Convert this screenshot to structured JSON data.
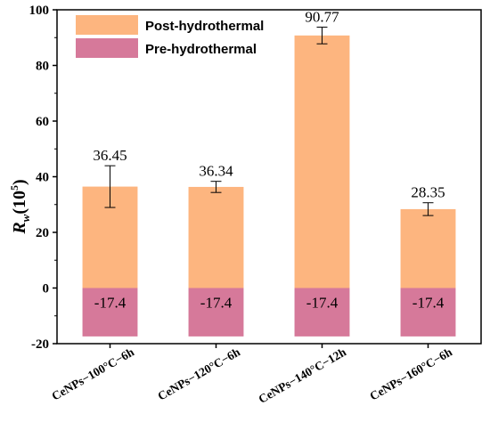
{
  "chart_data": {
    "type": "bar",
    "stacked": true,
    "categories": [
      "CeNPs−100°C−6h",
      "CeNPs−120°C−6h",
      "CeNPs−140°C−12h",
      "CeNPs−160°C−6h"
    ],
    "series": [
      {
        "name": "Post-hydrothermal",
        "values": [
          36.45,
          36.34,
          90.77,
          28.35
        ],
        "errors": [
          7.5,
          2.0,
          3.0,
          2.3
        ],
        "labels": [
          "36.45",
          "36.34",
          "90.77",
          "28.35"
        ],
        "color": "#FDB57F"
      },
      {
        "name": "Pre-hydrothermal",
        "values": [
          -17.4,
          -17.4,
          -17.4,
          -17.4
        ],
        "labels": [
          "-17.4",
          "-17.4",
          "-17.4",
          "-17.4"
        ],
        "color": "#D6799A"
      }
    ],
    "ylabel": {
      "main": "R",
      "sub": "w",
      "paren_open": "(10",
      "sup": "5",
      "paren_close": ")"
    },
    "xlabel": "",
    "ylim": [
      -20,
      100
    ],
    "yticks": [
      -20,
      0,
      20,
      40,
      60,
      80,
      100
    ],
    "legend": "top-left",
    "grid": false
  }
}
